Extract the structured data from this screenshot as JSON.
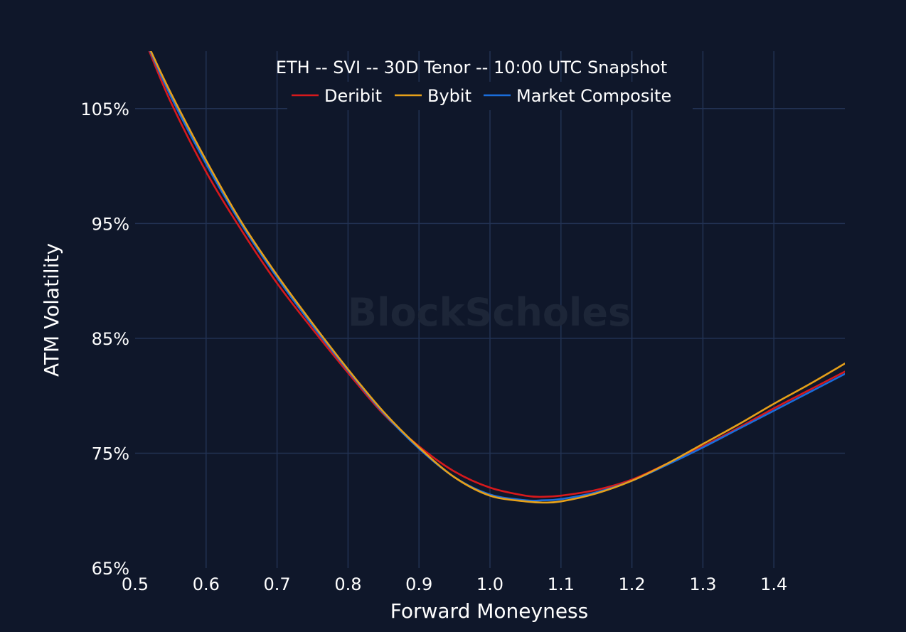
{
  "chart_data": {
    "type": "line",
    "title": "ETH -- SVI -- 30D Tenor -- 10:00 UTC Snapshot",
    "xlabel": "Forward Moneyness",
    "ylabel": "ATM Volatility",
    "xlim": [
      0.5,
      1.5
    ],
    "ylim": [
      65,
      110
    ],
    "x_ticks": [
      "0.5",
      "0.6",
      "0.7",
      "0.8",
      "0.9",
      "1.0",
      "1.1",
      "1.2",
      "1.3",
      "1.4"
    ],
    "x_tick_values": [
      0.5,
      0.6,
      0.7,
      0.8,
      0.9,
      1.0,
      1.1,
      1.2,
      1.3,
      1.4
    ],
    "y_ticks": [
      "65%",
      "75%",
      "85%",
      "95%",
      "105%"
    ],
    "y_tick_values": [
      65,
      75,
      85,
      95,
      105
    ],
    "x_grid_values": [
      0.6,
      0.7,
      0.8,
      0.9,
      1.0,
      1.1,
      1.2,
      1.3,
      1.4
    ],
    "y_grid_values": [
      75,
      85,
      95,
      105
    ],
    "grid": true,
    "legend": "top-center",
    "watermark": "BlockScholes",
    "x": [
      0.52,
      0.55,
      0.6,
      0.65,
      0.7,
      0.75,
      0.8,
      0.85,
      0.9,
      0.95,
      1.0,
      1.05,
      1.075,
      1.1,
      1.15,
      1.2,
      1.25,
      1.3,
      1.35,
      1.4,
      1.45,
      1.5
    ],
    "series": [
      {
        "name": "Deribit",
        "color": "#d7191c",
        "values": [
          110.0,
          105.6,
          99.5,
          94.4,
          89.8,
          85.8,
          82.0,
          78.4,
          75.6,
          73.4,
          72.0,
          71.3,
          71.2,
          71.3,
          71.8,
          72.7,
          74.1,
          75.6,
          77.2,
          78.9,
          80.5,
          82.1
        ]
      },
      {
        "name": "Bybit",
        "color": "#e6a019",
        "values": [
          110.3,
          106.4,
          100.5,
          95.1,
          90.5,
          86.3,
          82.3,
          78.6,
          75.5,
          72.9,
          71.3,
          70.8,
          70.7,
          70.8,
          71.5,
          72.6,
          74.1,
          75.8,
          77.5,
          79.3,
          81.0,
          82.8
        ]
      },
      {
        "name": "Market Composite",
        "color": "#1a6ddb",
        "values": [
          110.2,
          106.1,
          100.2,
          94.9,
          90.3,
          86.1,
          82.2,
          78.5,
          75.4,
          72.9,
          71.4,
          70.9,
          70.9,
          71.0,
          71.6,
          72.6,
          74.0,
          75.5,
          77.1,
          78.7,
          80.3,
          81.9
        ]
      }
    ]
  }
}
